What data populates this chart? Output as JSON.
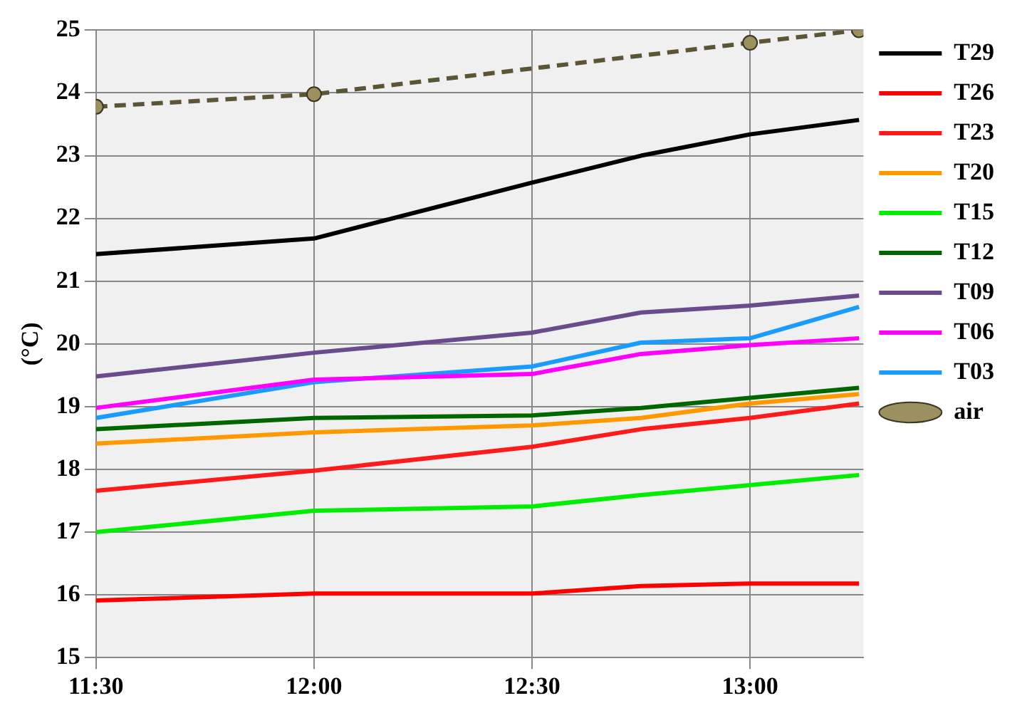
{
  "chart_data": {
    "type": "line",
    "ylabel": "(°C)",
    "x": [
      11.5,
      12,
      12.5,
      12.75,
      13,
      13.25
    ],
    "xlim": [
      11.5,
      13.26
    ],
    "xticks": [
      {
        "value": 11.5,
        "label": "11:30"
      },
      {
        "value": 12,
        "label": "12:00"
      },
      {
        "value": 12.5,
        "label": "12:30"
      },
      {
        "value": 13,
        "label": "13:00"
      }
    ],
    "ylim": [
      15,
      25
    ],
    "yticks": [
      15,
      16,
      17,
      18,
      19,
      20,
      21,
      22,
      23,
      24,
      25
    ],
    "grid": true,
    "legend": "right",
    "marker": "none",
    "line_style": "solid",
    "series": [
      {
        "name": "T29",
        "color": "#000000",
        "values": [
          21.43,
          21.68,
          22.57,
          23.0,
          23.34,
          23.57
        ]
      },
      {
        "name": "T26",
        "color": "#ff0000",
        "values": [
          15.91,
          16.02,
          16.02,
          16.14,
          16.18,
          16.18
        ]
      },
      {
        "name": "T23",
        "color": "#ff1a1a",
        "values": [
          17.66,
          17.98,
          18.36,
          18.64,
          18.82,
          19.05
        ]
      },
      {
        "name": "T20",
        "color": "#ff9900",
        "values": [
          18.41,
          18.59,
          18.7,
          18.82,
          19.05,
          19.2
        ]
      },
      {
        "name": "T15",
        "color": "#00ee00",
        "values": [
          17.0,
          17.34,
          17.41,
          17.59,
          17.75,
          17.91
        ]
      },
      {
        "name": "T12",
        "color": "#006600",
        "values": [
          18.64,
          18.82,
          18.86,
          18.98,
          19.14,
          19.3
        ]
      },
      {
        "name": "T09",
        "color": "#6a4c8c",
        "values": [
          19.48,
          19.86,
          20.18,
          20.5,
          20.61,
          20.77
        ]
      },
      {
        "name": "T06",
        "color": "#ff00ff",
        "values": [
          18.98,
          19.43,
          19.52,
          19.84,
          19.98,
          20.09
        ]
      },
      {
        "name": "T03",
        "color": "#1a9cff",
        "values": [
          18.82,
          19.39,
          19.64,
          20.02,
          20.09,
          20.59
        ]
      },
      {
        "name": "air",
        "color": "#5b5535",
        "x": [
          11.5,
          12,
          13,
          13.25
        ],
        "values": [
          23.78,
          23.98,
          24.8,
          25.0
        ],
        "marker": "circle",
        "line_style": "dashed"
      }
    ]
  }
}
